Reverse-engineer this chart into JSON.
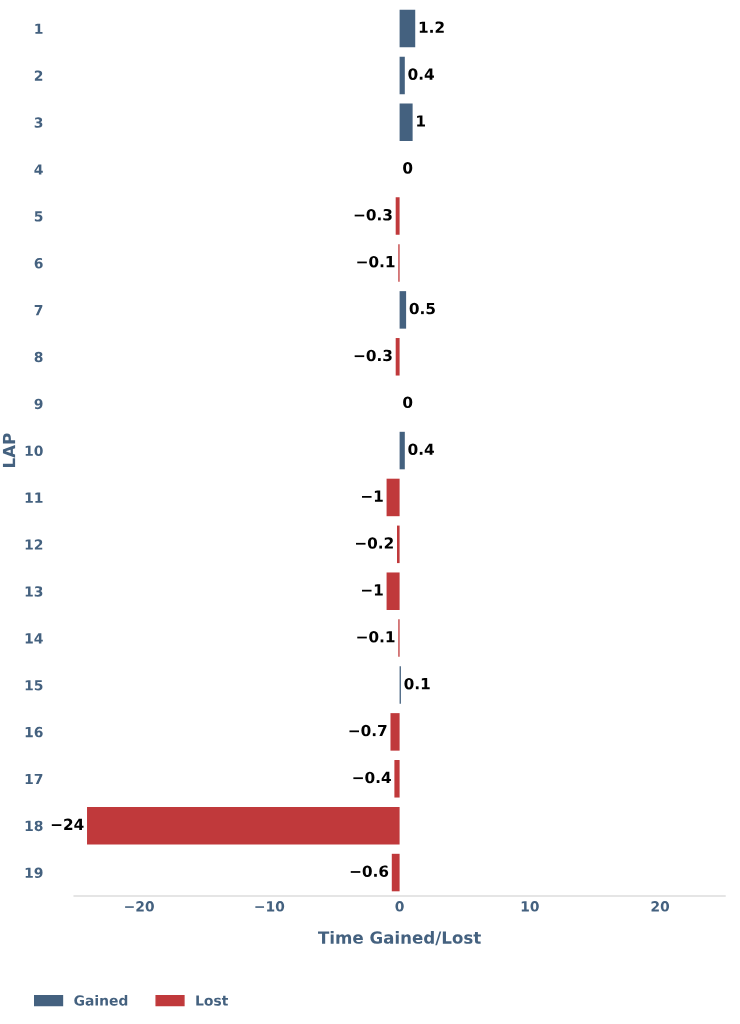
{
  "chart_data": {
    "type": "bar",
    "orientation": "horizontal",
    "xlabel": "Time Gained/Lost",
    "ylabel": "LAP",
    "categories": [
      "1",
      "2",
      "3",
      "4",
      "5",
      "6",
      "7",
      "8",
      "9",
      "10",
      "11",
      "12",
      "13",
      "14",
      "15",
      "16",
      "17",
      "18",
      "19"
    ],
    "series": [
      {
        "name": "Gained",
        "color": "#44617f",
        "values": [
          1.2,
          0.4,
          1,
          0,
          null,
          null,
          0.5,
          null,
          0,
          0.4,
          null,
          null,
          null,
          null,
          0.1,
          null,
          null,
          null,
          null
        ]
      },
      {
        "name": "Lost",
        "color": "#c0393b",
        "values": [
          null,
          null,
          null,
          null,
          -0.3,
          -0.1,
          null,
          -0.3,
          null,
          null,
          -1,
          -0.2,
          -1,
          -0.1,
          null,
          -0.7,
          -0.4,
          -24,
          -0.6
        ]
      }
    ],
    "xlim": [
      -25,
      25
    ],
    "xticks": [
      {
        "value": -20,
        "label": "−20"
      },
      {
        "value": -10,
        "label": "−10"
      },
      0,
      10,
      20
    ],
    "data_labels": true,
    "grid": false,
    "legend": "bottom left"
  }
}
